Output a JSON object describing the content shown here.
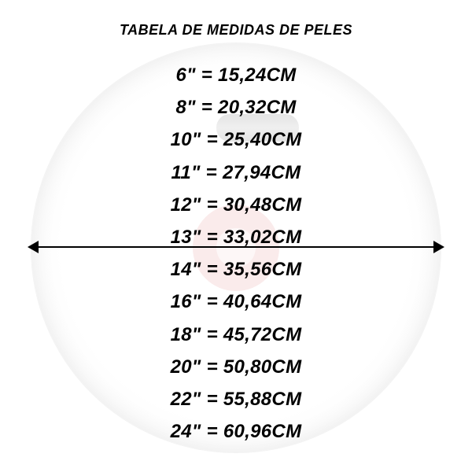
{
  "title": "TABELA DE MEDIDAS DE PELES",
  "title_fontsize": 18,
  "row_fontsize": 24,
  "text_color": "#000000",
  "background_color": "#ffffff",
  "drumhead": {
    "diameter": 520,
    "fill_gradient": [
      "#ffffff",
      "#f8f8f8",
      "#e8e8e8"
    ]
  },
  "watermark_circle_color": "#f2c7c7",
  "arrow_color": "#000000",
  "measurements": [
    {
      "inches": "6\"",
      "cm": "15,24CM"
    },
    {
      "inches": "8\"",
      "cm": "20,32CM"
    },
    {
      "inches": "10\"",
      "cm": "25,40CM"
    },
    {
      "inches": "11\"",
      "cm": "27,94CM"
    },
    {
      "inches": "12\"",
      "cm": "30,48CM"
    },
    {
      "inches": "13\"",
      "cm": "33,02CM"
    },
    {
      "inches": "14\"",
      "cm": "35,56CM"
    },
    {
      "inches": "16\"",
      "cm": "40,64CM"
    },
    {
      "inches": "18\"",
      "cm": "45,72CM"
    },
    {
      "inches": "20\"",
      "cm": "50,80CM"
    },
    {
      "inches": "22\"",
      "cm": "55,88CM"
    },
    {
      "inches": "24\"",
      "cm": "60,96CM"
    }
  ]
}
